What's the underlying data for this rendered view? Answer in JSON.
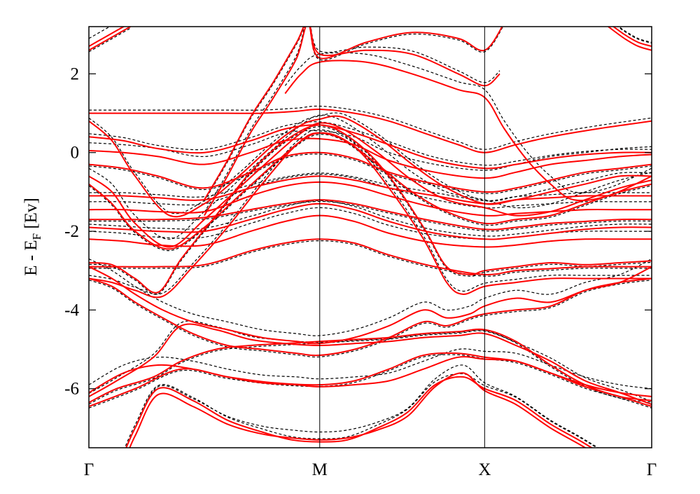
{
  "chart_data": {
    "type": "line",
    "ylabel_main": "E - E",
    "ylabel_sub": "F",
    "ylabel_tail": " [Ev]",
    "xlabel": "",
    "ylim": [
      -7.5,
      3.2
    ],
    "yticks": [
      2,
      0,
      -2,
      -4,
      -6
    ],
    "ytick_labels": [
      "2",
      "0",
      "-2",
      "-4",
      "-6"
    ],
    "x_points": [
      {
        "label": "Γ",
        "x": 0
      },
      {
        "label": "M",
        "x": 1
      },
      {
        "label": "X",
        "x": 1.7145
      },
      {
        "label": "Γ",
        "x": 2.4382
      }
    ],
    "grid": false,
    "legend": "none",
    "colors": {
      "solid": "#ff0000",
      "dashed": "#000000"
    },
    "series": [
      {
        "style": "solid",
        "x": [
          0,
          0.12,
          0.28,
          0.4,
          0.55,
          0.7,
          0.85,
          1,
          1.15,
          1.3,
          1.45,
          1.6,
          1.7145,
          1.85,
          2,
          2.15,
          2.3,
          2.4382
        ],
        "y": [
          -6.35,
          -6.0,
          -5.7,
          -5.3,
          -5.0,
          -4.9,
          -4.85,
          -4.8,
          -4.75,
          -4.7,
          -4.6,
          -4.55,
          -4.5,
          -4.8,
          -5.4,
          -5.9,
          -6.2,
          -6.3
        ]
      },
      {
        "style": "solid",
        "x": [
          0,
          0.12,
          0.28,
          0.4,
          0.55,
          0.7,
          0.85,
          1,
          1.15,
          1.3,
          1.45,
          1.6,
          1.7145,
          1.85,
          2,
          2.15,
          2.3,
          2.4382
        ],
        "y": [
          -6.2,
          -5.8,
          -5.2,
          -4.4,
          -4.5,
          -4.75,
          -4.85,
          -4.9,
          -4.85,
          -4.8,
          -4.7,
          -4.65,
          -4.6,
          -4.9,
          -5.3,
          -5.8,
          -6.1,
          -6.4
        ]
      },
      {
        "style": "solid",
        "x": [
          0,
          0.15,
          0.3,
          0.45,
          0.6,
          0.75,
          0.9,
          1,
          1.15,
          1.3,
          1.45,
          1.6,
          1.7145,
          1.85,
          2,
          2.15,
          2.3,
          2.4382
        ],
        "y": [
          -6.1,
          -5.6,
          -5.4,
          -5.5,
          -5.7,
          -5.85,
          -5.9,
          -5.95,
          -5.9,
          -5.8,
          -5.5,
          -5.2,
          -5.25,
          -5.3,
          -5.6,
          -5.9,
          -6.1,
          -6.2
        ]
      },
      {
        "style": "solid",
        "x": [
          0,
          0.2,
          0.4,
          0.6,
          0.8,
          1,
          1.15,
          1.3,
          1.45,
          1.6,
          1.7145,
          1.85,
          2,
          2.15,
          2.3,
          2.4382
        ],
        "y": [
          -6.45,
          -6.0,
          -5.5,
          -5.7,
          -5.85,
          -5.9,
          -5.8,
          -5.5,
          -5.15,
          -5.1,
          -5.2,
          -5.3,
          -5.6,
          -5.95,
          -6.2,
          -6.45
        ]
      },
      {
        "style": "solid",
        "x": [
          0,
          0.12,
          0.2,
          0.3,
          0.45,
          0.6,
          0.75,
          0.88,
          1,
          1.12,
          1.25,
          1.38,
          1.5,
          1.62,
          1.7145,
          1.85,
          2,
          2.15,
          2.3,
          2.4382
        ],
        "y": [
          -9.0,
          -8.0,
          -7.0,
          -6.0,
          -6.3,
          -6.8,
          -7.1,
          -7.3,
          -7.35,
          -7.3,
          -7.0,
          -6.6,
          -5.9,
          -5.7,
          -6.0,
          -6.3,
          -6.9,
          -7.4,
          -8.0,
          -9.0
        ]
      },
      {
        "style": "solid",
        "x": [
          0,
          0.12,
          0.2,
          0.3,
          0.45,
          0.6,
          0.75,
          0.88,
          1,
          1.12,
          1.25,
          1.38,
          1.5,
          1.62,
          1.7145,
          1.85,
          2,
          2.15,
          2.3,
          2.4382
        ],
        "y": [
          -9.0,
          -8.2,
          -7.2,
          -6.15,
          -6.45,
          -6.9,
          -7.15,
          -7.25,
          -7.3,
          -7.25,
          -7.05,
          -6.7,
          -5.95,
          -5.6,
          -6.05,
          -6.4,
          -7.0,
          -7.5,
          -8.1,
          -9.0
        ]
      },
      {
        "style": "solid",
        "x": [
          0,
          0.1,
          0.2,
          0.3,
          0.4,
          0.55,
          0.7,
          0.85,
          1,
          1.15,
          1.3,
          1.45,
          1.55,
          1.65,
          1.7145,
          1.85,
          2,
          2.15,
          2.3,
          2.4382
        ],
        "y": [
          -2.8,
          -2.85,
          -3.2,
          -3.55,
          -2.7,
          -1.6,
          -0.5,
          0.3,
          0.7,
          0.3,
          -0.6,
          -1.9,
          -2.9,
          -3.1,
          -3.0,
          -2.9,
          -2.8,
          -2.85,
          -2.8,
          -2.75
        ]
      },
      {
        "style": "solid",
        "x": [
          0,
          0.1,
          0.2,
          0.32,
          0.45,
          0.6,
          0.75,
          0.9,
          1,
          1.15,
          1.3,
          1.45,
          1.55,
          1.62,
          1.7145,
          1.85,
          2,
          2.15,
          2.3,
          2.4382
        ],
        "y": [
          -3.2,
          -3.3,
          -3.5,
          -3.65,
          -2.9,
          -1.9,
          -0.8,
          0.2,
          0.5,
          0.15,
          -0.9,
          -2.2,
          -3.3,
          -3.6,
          -3.4,
          -3.3,
          -3.2,
          -3.2,
          -3.2,
          -3.2
        ]
      },
      {
        "style": "solid",
        "x": [
          0,
          0.1,
          0.2,
          0.32,
          0.45,
          0.6,
          0.75,
          0.9,
          1,
          1.15,
          1.3,
          1.45,
          1.55,
          1.65,
          1.7145,
          1.85,
          2,
          2.15,
          2.3,
          2.4382
        ],
        "y": [
          -2.9,
          -3.2,
          -3.6,
          -4.0,
          -4.3,
          -4.5,
          -4.7,
          -4.8,
          -4.85,
          -4.7,
          -4.4,
          -4.0,
          -4.2,
          -4.1,
          -3.9,
          -3.7,
          -3.8,
          -3.5,
          -3.3,
          -2.9
        ]
      },
      {
        "style": "solid",
        "x": [
          0,
          0.1,
          0.2,
          0.32,
          0.45,
          0.6,
          0.75,
          0.9,
          1,
          1.15,
          1.3,
          1.45,
          1.55,
          1.65,
          1.7145,
          1.85,
          2,
          2.15,
          2.3,
          2.4382
        ],
        "y": [
          -3.2,
          -3.4,
          -3.8,
          -4.2,
          -4.6,
          -4.9,
          -5.0,
          -5.1,
          -5.15,
          -5.0,
          -4.7,
          -4.3,
          -4.4,
          -4.2,
          -4.1,
          -4.0,
          -3.9,
          -3.5,
          -3.3,
          -3.2
        ]
      },
      {
        "style": "solid",
        "x": [
          0,
          0.1,
          0.2,
          0.35,
          0.5,
          0.65,
          0.8,
          0.92,
          1,
          1.1,
          1.25,
          1.4,
          1.55,
          1.7145,
          1.85,
          2,
          2.15,
          2.3,
          2.4382
        ],
        "y": [
          0.8,
          0.3,
          -0.6,
          -1.6,
          -1.3,
          -0.6,
          0.2,
          0.7,
          0.85,
          0.9,
          0.4,
          -0.3,
          -0.9,
          -1.3,
          -1.2,
          -1.0,
          -0.8,
          -0.6,
          -0.6
        ]
      },
      {
        "style": "solid",
        "x": [
          0,
          0.1,
          0.2,
          0.35,
          0.5,
          0.65,
          0.8,
          0.92,
          1,
          1.1,
          1.25,
          1.4,
          1.55,
          1.7145,
          1.85,
          2,
          2.15,
          2.3,
          2.4382
        ],
        "y": [
          -0.6,
          -1.0,
          -1.8,
          -2.4,
          -1.7,
          -0.9,
          -0.1,
          0.5,
          0.75,
          0.6,
          0.0,
          -0.7,
          -1.2,
          -1.4,
          -1.6,
          -1.5,
          -1.2,
          -0.9,
          -0.7
        ]
      },
      {
        "style": "solid",
        "x": [
          0,
          0.1,
          0.2,
          0.35,
          0.5,
          0.65,
          0.8,
          0.92,
          1,
          1.1,
          1.25,
          1.4,
          1.55,
          1.7145,
          1.85,
          2,
          2.15,
          2.3,
          2.4382
        ],
        "y": [
          -0.8,
          -1.3,
          -2.0,
          -2.45,
          -1.9,
          -1.1,
          -0.3,
          0.3,
          0.5,
          0.35,
          -0.3,
          -1.0,
          -1.5,
          -1.8,
          -1.7,
          -1.6,
          -1.3,
          -1.0,
          -0.8
        ]
      },
      {
        "style": "solid",
        "x": [
          0,
          0.15,
          0.3,
          0.5,
          0.7,
          0.85,
          1,
          1.15,
          1.3,
          1.5,
          1.7145,
          1.85,
          2,
          2.15,
          2.3,
          2.4382
        ],
        "y": [
          0.4,
          0.3,
          0.1,
          0.0,
          0.3,
          0.6,
          0.7,
          0.5,
          0.2,
          -0.2,
          -0.4,
          -0.3,
          -0.15,
          -0.05,
          0.0,
          0.0
        ]
      },
      {
        "style": "solid",
        "x": [
          0,
          0.15,
          0.3,
          0.5,
          0.7,
          0.85,
          1,
          1.15,
          1.3,
          1.5,
          1.7145,
          1.85,
          2,
          2.15,
          2.3,
          2.4382
        ],
        "y": [
          0.05,
          0.0,
          -0.1,
          -0.3,
          0.0,
          0.3,
          0.35,
          0.2,
          -0.2,
          -0.5,
          -0.65,
          -0.5,
          -0.3,
          -0.2,
          -0.1,
          -0.05
        ]
      },
      {
        "style": "solid",
        "x": [
          0,
          0.15,
          0.3,
          0.5,
          0.7,
          0.85,
          1,
          1.15,
          1.3,
          1.5,
          1.7145,
          1.85,
          2,
          2.15,
          2.3,
          2.4382
        ],
        "y": [
          -0.3,
          -0.4,
          -0.6,
          -0.9,
          -0.5,
          -0.1,
          0.0,
          -0.15,
          -0.5,
          -0.8,
          -1.0,
          -0.9,
          -0.7,
          -0.5,
          -0.4,
          -0.3
        ]
      },
      {
        "style": "solid",
        "x": [
          0,
          0.15,
          0.3,
          0.5,
          0.7,
          0.85,
          1,
          1.15,
          1.3,
          1.5,
          1.7145,
          1.85,
          2,
          2.15,
          2.3,
          2.4382
        ],
        "y": [
          -1.1,
          -1.1,
          -1.15,
          -1.2,
          -0.9,
          -0.7,
          -0.6,
          -0.7,
          -0.9,
          -1.1,
          -1.3,
          -1.2,
          -1.15,
          -1.1,
          -1.1,
          -1.1
        ]
      },
      {
        "style": "solid",
        "x": [
          0,
          0.15,
          0.3,
          0.5,
          0.7,
          0.85,
          1,
          1.15,
          1.3,
          1.5,
          1.7145,
          1.85,
          2,
          2.15,
          2.3,
          2.4382
        ],
        "y": [
          -1.45,
          -1.45,
          -1.5,
          -1.5,
          -1.1,
          -0.85,
          -0.75,
          -0.85,
          -1.1,
          -1.4,
          -1.6,
          -1.55,
          -1.5,
          -1.45,
          -1.45,
          -1.45
        ]
      },
      {
        "style": "solid",
        "x": [
          0,
          0.15,
          0.3,
          0.5,
          0.7,
          0.85,
          1,
          1.15,
          1.3,
          1.5,
          1.7145,
          1.85,
          2,
          2.15,
          2.3,
          2.4382
        ],
        "y": [
          -1.7,
          -1.7,
          -1.7,
          -1.65,
          -1.45,
          -1.3,
          -1.2,
          -1.3,
          -1.5,
          -1.75,
          -1.95,
          -1.9,
          -1.8,
          -1.75,
          -1.7,
          -1.7
        ]
      },
      {
        "style": "solid",
        "x": [
          0,
          0.15,
          0.3,
          0.5,
          0.7,
          0.85,
          1,
          1.15,
          1.3,
          1.5,
          1.7145,
          1.85,
          2,
          2.15,
          2.3,
          2.4382
        ],
        "y": [
          -1.9,
          -1.95,
          -2.0,
          -2.0,
          -1.7,
          -1.45,
          -1.3,
          -1.45,
          -1.75,
          -2.05,
          -2.2,
          -2.15,
          -2.05,
          -1.95,
          -1.9,
          -1.9
        ]
      },
      {
        "style": "solid",
        "x": [
          0,
          0.15,
          0.3,
          0.5,
          0.7,
          0.85,
          1,
          1.15,
          1.3,
          1.5,
          1.7145,
          1.85,
          2,
          2.15,
          2.3,
          2.4382
        ],
        "y": [
          -2.2,
          -2.25,
          -2.35,
          -2.35,
          -2.0,
          -1.75,
          -1.6,
          -1.75,
          -2.05,
          -2.3,
          -2.4,
          -2.35,
          -2.25,
          -2.2,
          -2.2,
          -2.2
        ]
      },
      {
        "style": "solid",
        "x": [
          0,
          0.15,
          0.3,
          0.5,
          0.7,
          0.85,
          1,
          1.15,
          1.3,
          1.5,
          1.7145,
          1.85,
          2,
          2.15,
          2.3,
          2.4382
        ],
        "y": [
          -2.9,
          -2.9,
          -2.9,
          -2.85,
          -2.5,
          -2.3,
          -2.2,
          -2.3,
          -2.6,
          -2.9,
          -3.1,
          -3.0,
          -2.95,
          -2.9,
          -2.9,
          -2.9
        ]
      },
      {
        "style": "solid",
        "x": [
          0,
          0.15,
          0.3,
          0.45,
          0.6,
          0.75,
          0.9,
          1,
          1.15,
          1.3,
          1.45,
          1.6,
          1.7145,
          1.85,
          2,
          2.2,
          2.4382
        ],
        "y": [
          1.0,
          1.0,
          1.0,
          1.0,
          1.0,
          1.0,
          1.05,
          1.1,
          1.0,
          0.8,
          0.5,
          0.2,
          0.0,
          0.2,
          0.4,
          0.6,
          0.8
        ]
      },
      {
        "style": "solid",
        "x": [
          0,
          0.06,
          0.12,
          0.18
        ],
        "y": [
          2.7,
          2.9,
          3.1,
          3.3
        ]
      },
      {
        "style": "solid",
        "x": [
          0,
          0.06,
          0.12,
          0.18
        ],
        "y": [
          2.6,
          2.8,
          3.0,
          3.2
        ]
      },
      {
        "style": "solid",
        "x": [
          2.25,
          2.32,
          2.38,
          2.4382
        ],
        "y": [
          3.3,
          3.0,
          2.8,
          2.7
        ]
      },
      {
        "style": "solid",
        "x": [
          2.25,
          2.32,
          2.38,
          2.4382
        ],
        "y": [
          3.2,
          2.9,
          2.7,
          2.6
        ]
      },
      {
        "style": "solid",
        "x": [
          0.5,
          0.6,
          0.7,
          0.8,
          0.9,
          0.95,
          1,
          1.2,
          1.4,
          1.6,
          1.7145,
          1.8
        ],
        "y": [
          -1.2,
          -0.2,
          0.9,
          1.8,
          2.8,
          3.3,
          2.4,
          2.8,
          3.05,
          2.9,
          2.6,
          3.3
        ]
      },
      {
        "style": "solid",
        "x": [
          0.5,
          0.6,
          0.7,
          0.8,
          0.9,
          0.95,
          1,
          1.2,
          1.4,
          1.6,
          1.7145,
          1.78
        ],
        "y": [
          -1.6,
          -0.6,
          0.5,
          1.4,
          2.4,
          3.3,
          2.5,
          2.6,
          2.5,
          2.0,
          1.7,
          2.0
        ]
      },
      {
        "style": "solid",
        "x": [
          0.85,
          0.92,
          1,
          1.2,
          1.4,
          1.6,
          1.7145,
          1.8,
          1.9,
          2.0,
          2.1,
          2.25,
          2.4382
        ],
        "y": [
          1.5,
          2.0,
          2.3,
          2.3,
          2.0,
          1.6,
          1.4,
          0.6,
          -0.2,
          -0.8,
          -1.2,
          -1.1,
          -0.6
        ]
      }
    ]
  }
}
